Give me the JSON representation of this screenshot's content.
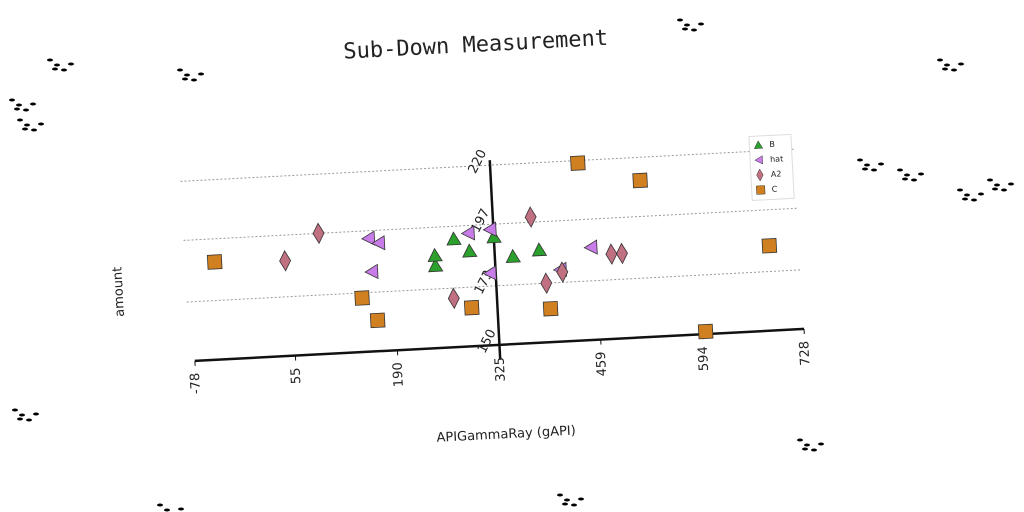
{
  "chart_data": {
    "type": "scatter",
    "title": "Sub-Down Measurement",
    "x_label": "APIGammaRay (gAPI)",
    "y_label": "amount",
    "xlim": [
      -78,
      728
    ],
    "xticks": [
      -78,
      55,
      190,
      325,
      459,
      594,
      728
    ],
    "ylim": [
      150,
      220
    ],
    "yticks": [
      150,
      173,
      197,
      220
    ],
    "grid": true,
    "legend": "upper right",
    "series": [
      {
        "name": "B",
        "color": "#2ca02c",
        "marker": "triangle-up",
        "x": [
          246,
          246,
          272,
          292,
          325,
          349,
          384
        ],
        "values": [
          182,
          186,
          192,
          187,
          192,
          184,
          186
        ]
      },
      {
        "name": "hat",
        "color": "#c77ce8",
        "marker": "triangle-left",
        "x": [
          160,
          173,
          162,
          292,
          321,
          318,
          411,
          453
        ],
        "values": [
          194,
          192,
          181,
          194,
          195,
          178,
          178,
          186
        ]
      },
      {
        "name": "A2",
        "color": "#c07080",
        "marker": "diamond",
        "x": [
          48,
          94,
          268,
          375,
          391,
          413,
          479,
          493
        ],
        "values": [
          187,
          197,
          169,
          199,
          173,
          177,
          183,
          183
        ]
      },
      {
        "name": "C",
        "color": "#d08020",
        "marker": "square",
        "x": [
          -45,
          147,
          166,
          291,
          395,
          441,
          522,
          598,
          688
        ],
        "values": [
          188,
          171,
          162,
          165,
          163,
          219,
          211,
          151,
          183
        ]
      }
    ]
  }
}
